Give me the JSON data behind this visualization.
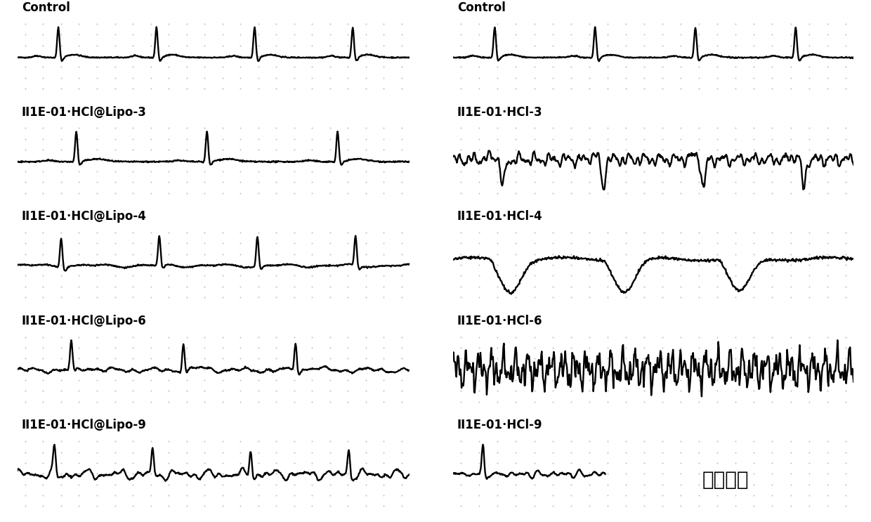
{
  "background_color": "#ffffff",
  "dot_color": "#999999",
  "line_color": "#000000",
  "left_labels": [
    "Control",
    "II1E-01·HCl@Lipo-3",
    "II1E-01·HCl@Lipo-4",
    "II1E-01·HCl@Lipo-6",
    "II1E-01·HCl@Lipo-9"
  ],
  "right_labels": [
    "Control",
    "II1E-01·HCl-3",
    "II1E-01·HCl-4",
    "II1E-01·HCl-6",
    "II1E-01·HCl-9"
  ],
  "right_extra_text": "无法耐受",
  "label_fontsize": 12,
  "extra_text_fontsize": 20
}
